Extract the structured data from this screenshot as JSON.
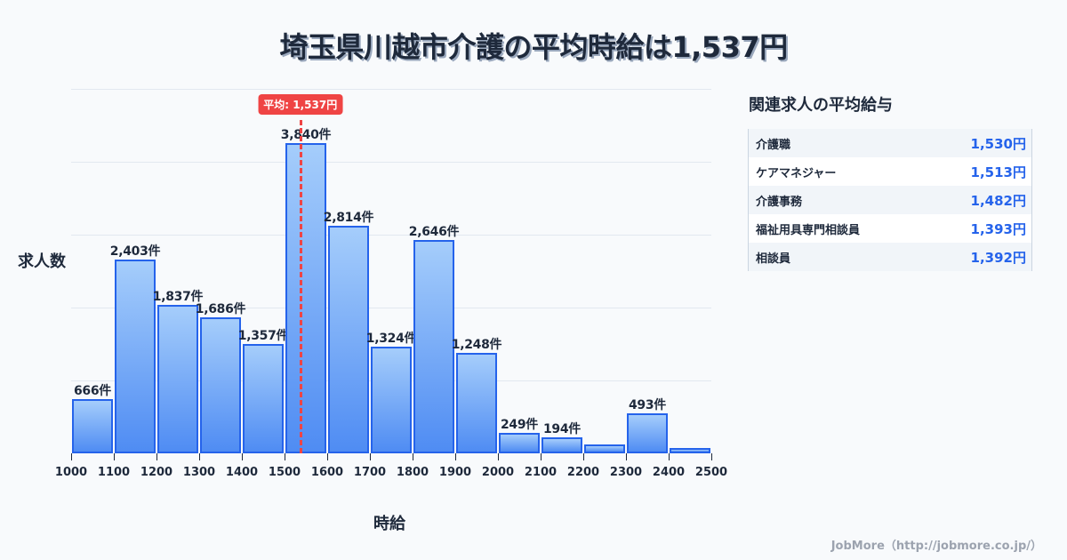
{
  "title": "埼玉県川越市介護の平均時給は1,537円",
  "chart_data": {
    "type": "bar",
    "title": "埼玉県川越市介護の平均時給は1,537円",
    "xlabel": "時給",
    "ylabel": "求人数",
    "x_ticks": [
      "1000",
      "1100",
      "1200",
      "1300",
      "1400",
      "1500",
      "1600",
      "1700",
      "1800",
      "1900",
      "2000",
      "2100",
      "2200",
      "2300",
      "2400",
      "2500"
    ],
    "bins": [
      {
        "from": 1000,
        "to": 1100,
        "value": 666,
        "label": "666件"
      },
      {
        "from": 1100,
        "to": 1200,
        "value": 2403,
        "label": "2,403件"
      },
      {
        "from": 1200,
        "to": 1300,
        "value": 1837,
        "label": "1,837件"
      },
      {
        "from": 1300,
        "to": 1400,
        "value": 1686,
        "label": "1,686件"
      },
      {
        "from": 1400,
        "to": 1500,
        "value": 1357,
        "label": "1,357件"
      },
      {
        "from": 1500,
        "to": 1600,
        "value": 3840,
        "label": "3,840件"
      },
      {
        "from": 1600,
        "to": 1700,
        "value": 2814,
        "label": "2,814件"
      },
      {
        "from": 1700,
        "to": 1800,
        "value": 1324,
        "label": "1,324件"
      },
      {
        "from": 1800,
        "to": 1900,
        "value": 2646,
        "label": "2,646件"
      },
      {
        "from": 1900,
        "to": 2000,
        "value": 1248,
        "label": "1,248件"
      },
      {
        "from": 2000,
        "to": 2100,
        "value": 249,
        "label": "249件"
      },
      {
        "from": 2100,
        "to": 2200,
        "value": 194,
        "label": "194件"
      },
      {
        "from": 2200,
        "to": 2300,
        "value": 110,
        "label": ""
      },
      {
        "from": 2300,
        "to": 2400,
        "value": 493,
        "label": "493件"
      },
      {
        "from": 2400,
        "to": 2500,
        "value": 66,
        "label": ""
      }
    ],
    "xlim": [
      1000,
      2500
    ],
    "ylim": [
      0,
      4500
    ],
    "grid": true,
    "average": {
      "value": 1537,
      "label": "平均: 1,537円",
      "color": "#ef4444"
    },
    "bar_color": "#2563eb"
  },
  "sidebar": {
    "title": "関連求人の平均給与",
    "rows": [
      {
        "name": "介護職",
        "value": "1,530円"
      },
      {
        "name": "ケアマネジャー",
        "value": "1,513円"
      },
      {
        "name": "介護事務",
        "value": "1,482円"
      },
      {
        "name": "福祉用具専門相談員",
        "value": "1,393円"
      },
      {
        "name": "相談員",
        "value": "1,392円"
      }
    ]
  },
  "footer": "JobMore（http://jobmore.co.jp/）"
}
